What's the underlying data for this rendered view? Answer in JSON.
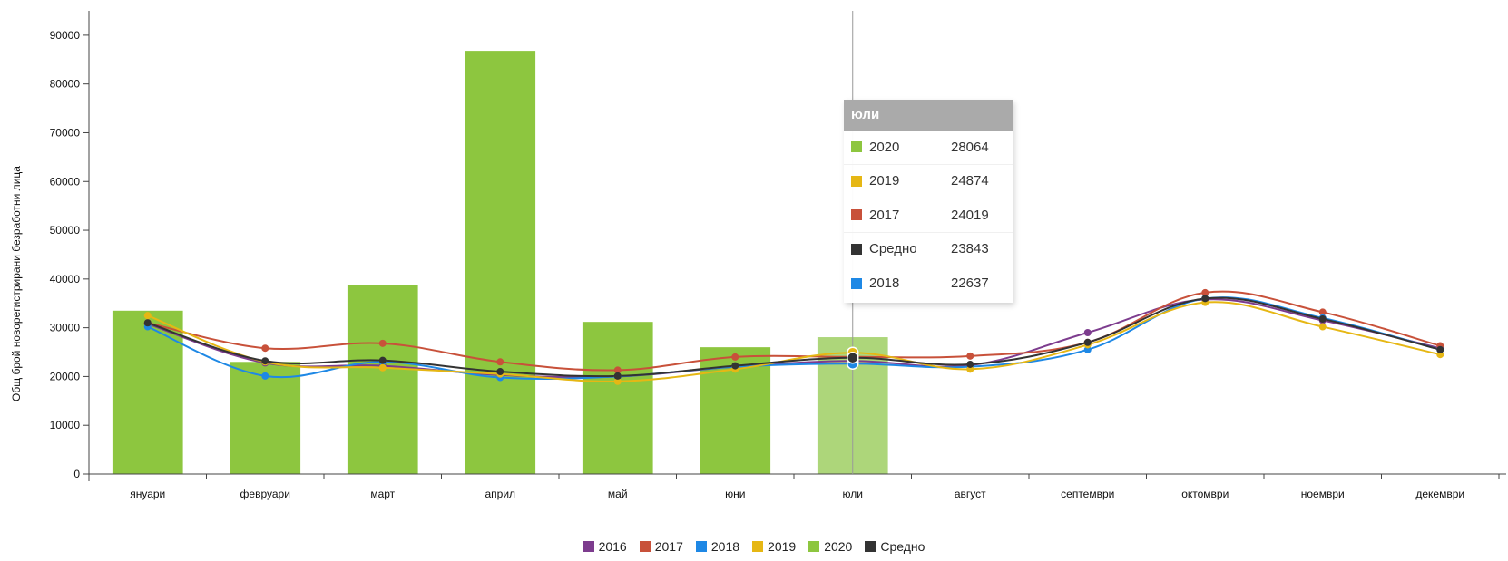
{
  "chart_data": {
    "type": "bar",
    "ylabel": "Общ брой новорегистрирани безработни лица",
    "xlabel": "",
    "ylim": [
      0,
      95000
    ],
    "yticks": [
      0,
      10000,
      20000,
      30000,
      40000,
      50000,
      60000,
      70000,
      80000,
      90000
    ],
    "categories": [
      "януари",
      "февруари",
      "март",
      "април",
      "май",
      "юни",
      "юли",
      "август",
      "септември",
      "октомври",
      "ноември",
      "декември"
    ],
    "bars": {
      "name": "2020",
      "color": "#8dc63f",
      "highlight_color": "#add67a",
      "values": [
        33500,
        23000,
        38700,
        86800,
        31200,
        26000,
        28064
      ]
    },
    "series": [
      {
        "name": "2016",
        "color": "#7d3c8e",
        "values": [
          30800,
          22800,
          22200,
          20300,
          20000,
          22000,
          23200,
          22300,
          29000,
          35800,
          31500,
          25800
        ]
      },
      {
        "name": "2017",
        "color": "#c8513a",
        "values": [
          31000,
          25800,
          26800,
          23000,
          21300,
          24000,
          24019,
          24200,
          27000,
          37200,
          33200,
          26300
        ]
      },
      {
        "name": "2018",
        "color": "#1e88e5",
        "values": [
          30200,
          20100,
          23000,
          19800,
          20000,
          22000,
          22637,
          22000,
          25500,
          36000,
          32000,
          25500
        ]
      },
      {
        "name": "2019",
        "color": "#e6b714",
        "values": [
          32500,
          23000,
          21800,
          20500,
          19000,
          21500,
          24874,
          21500,
          26500,
          35200,
          30200,
          24500
        ]
      },
      {
        "name": "Средно",
        "color": "#333333",
        "values": [
          31000,
          23200,
          23300,
          21000,
          20100,
          22200,
          23843,
          22500,
          27000,
          36000,
          31800,
          25500
        ]
      }
    ],
    "legend": [
      {
        "name": "2016",
        "color": "#7d3c8e"
      },
      {
        "name": "2017",
        "color": "#c8513a"
      },
      {
        "name": "2018",
        "color": "#1e88e5"
      },
      {
        "name": "2019",
        "color": "#e6b714"
      },
      {
        "name": "2020",
        "color": "#8dc63f"
      },
      {
        "name": "Средно",
        "color": "#333333"
      }
    ],
    "legend_position": "bottom-center",
    "grid": false,
    "crosshair_category": "юли"
  },
  "tooltip": {
    "title": "юли",
    "rows": [
      {
        "name": "2020",
        "value": "28064",
        "color": "#8dc63f"
      },
      {
        "name": "2019",
        "value": "24874",
        "color": "#e6b714"
      },
      {
        "name": "2017",
        "value": "24019",
        "color": "#c8513a"
      },
      {
        "name": "Средно",
        "value": "23843",
        "color": "#333333"
      },
      {
        "name": "2018",
        "value": "22637",
        "color": "#1e88e5"
      }
    ]
  }
}
